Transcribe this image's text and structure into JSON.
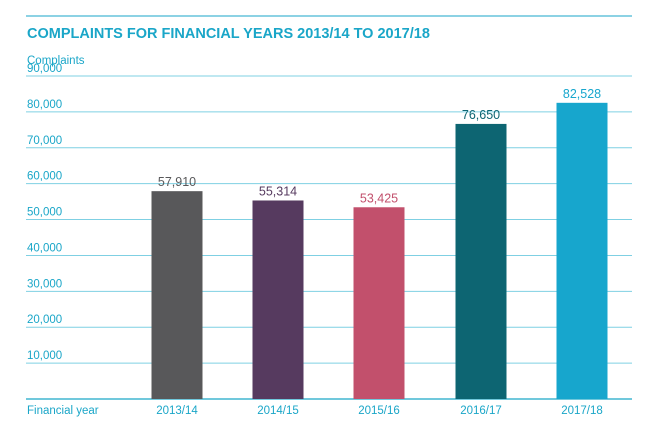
{
  "chart_data": {
    "type": "bar",
    "title": "COMPLAINTS FOR FINANCIAL YEARS 2013/14 TO 2017/18",
    "ylabel": "Complaints",
    "xlabel": "Financial year",
    "categories": [
      "2013/14",
      "2014/15",
      "2015/16",
      "2016/17",
      "2017/18"
    ],
    "values": [
      57910,
      55314,
      53425,
      76650,
      82528
    ],
    "value_labels": [
      "57,910",
      "55,314",
      "53,425",
      "76,650",
      "82,528"
    ],
    "bar_colors": [
      "#58585a",
      "#563a5f",
      "#c2506c",
      "#0d6572",
      "#17a6cd"
    ],
    "label_colors": [
      "#58585a",
      "#563a5f",
      "#c2506c",
      "#0d6572",
      "#17a6cd"
    ],
    "yticks": [
      10000,
      20000,
      30000,
      40000,
      50000,
      60000,
      70000,
      80000,
      90000
    ],
    "ytick_labels": [
      "10,000",
      "20,000",
      "30,000",
      "40,000",
      "50,000",
      "60,000",
      "70,000",
      "80,000",
      "90,000"
    ],
    "ylim": [
      0,
      90000
    ],
    "grid": true,
    "accent_color": "#1aa6c8"
  }
}
